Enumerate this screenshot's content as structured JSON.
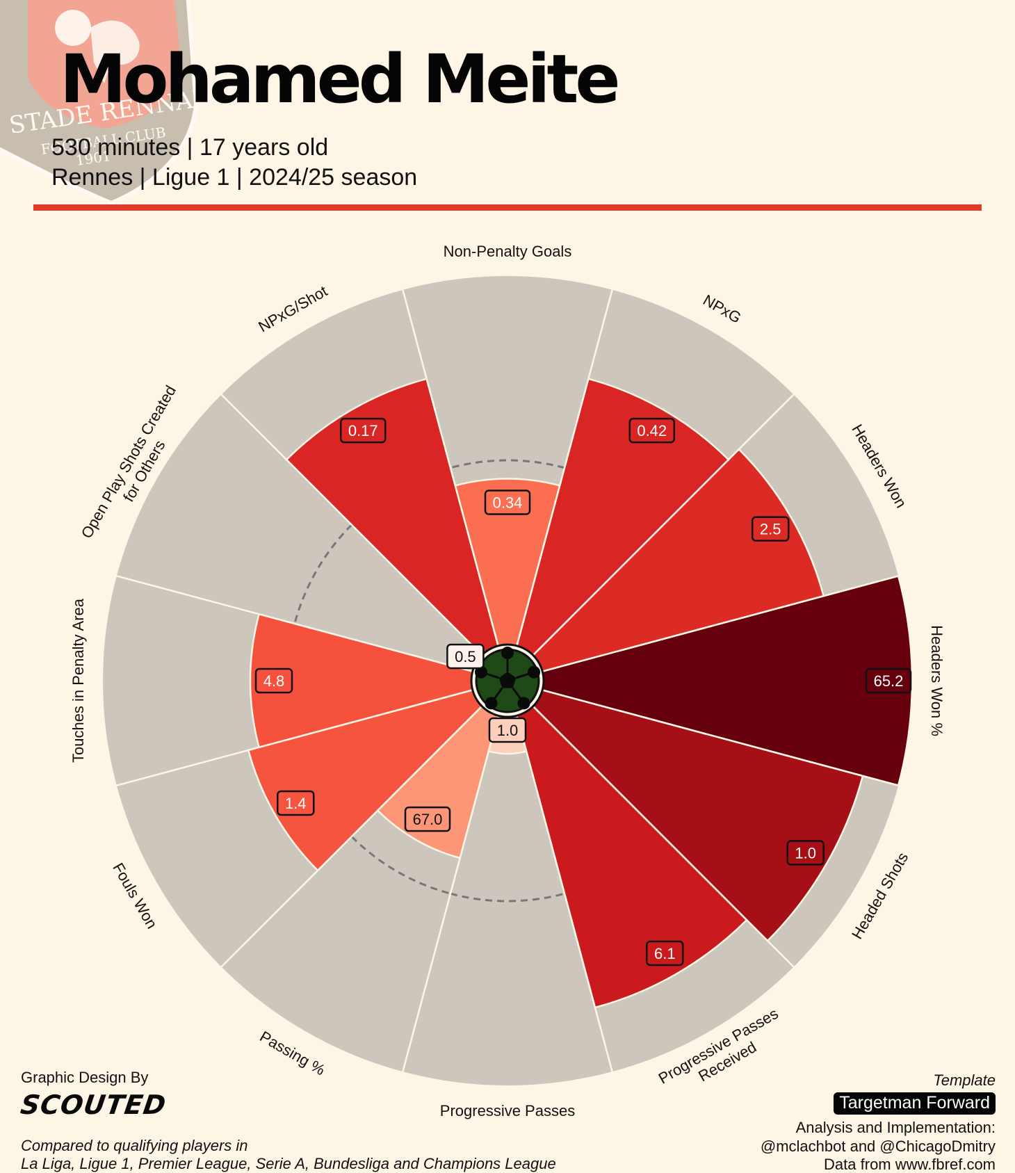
{
  "header": {
    "title": "Mohamed Meite",
    "line1": "530 minutes | 17 years old",
    "line2": "Rennes | Ligue 1 | 2024/25 season"
  },
  "crest": {
    "text_top": "STADE RENNAIS",
    "text_bottom": "FOOTBALL CLUB",
    "year": "1901"
  },
  "colors": {
    "background": "#fdf5e5",
    "accent": "#e03a2b",
    "slice_background": "#cdc6bc",
    "badge_dark": "#050505"
  },
  "chart_data": {
    "type": "pie",
    "variant": "percentile-pizza",
    "start_angle_deg": 90,
    "direction": "counterclockwise",
    "categories": [
      "Non-Penalty Goals",
      "NPxG/Shot",
      "Open Play Shots Created for Others",
      "Touches in Penalty Area",
      "Fouls Won",
      "Passing %",
      "Progressive Passes",
      "Progressive Passes Received",
      "Headed Shots",
      "Headers Won %",
      "Headers Won",
      "NPxG"
    ],
    "values": [
      "0.34",
      "0.17",
      "0.5",
      "4.8",
      "1.4",
      "67.0",
      "1.0",
      "6.1",
      "1.0",
      "65.2",
      "2.5",
      "0.42"
    ],
    "percentiles": [
      45,
      75,
      0,
      60,
      63,
      40,
      10,
      82,
      90,
      100,
      79,
      75
    ],
    "comparison_percentile": 50,
    "slice_colors": [
      "#fb6e51",
      "#d92523",
      "#fee0d2",
      "#f5513d",
      "#f5553e",
      "#fc9677",
      "#fdcfbd",
      "#cb1a1d",
      "#a50f15",
      "#67000d",
      "#dc2a25",
      "#d92523"
    ]
  },
  "footer": {
    "credit_label": "Graphic Design By",
    "credit_brand": "SCOUTED",
    "compared_line1": "Compared to qualifying players in",
    "compared_line2": "La Liga, Ligue 1, Premier League, Serie A, Bundesliga and Champions League",
    "template_label": "Template",
    "template_name": "Targetman Forward",
    "analysis_label": "Analysis and Implementation:",
    "analysis_handles": "@mclachbot and @ChicagoDmitry",
    "source": "Data from www.fbref.com"
  }
}
